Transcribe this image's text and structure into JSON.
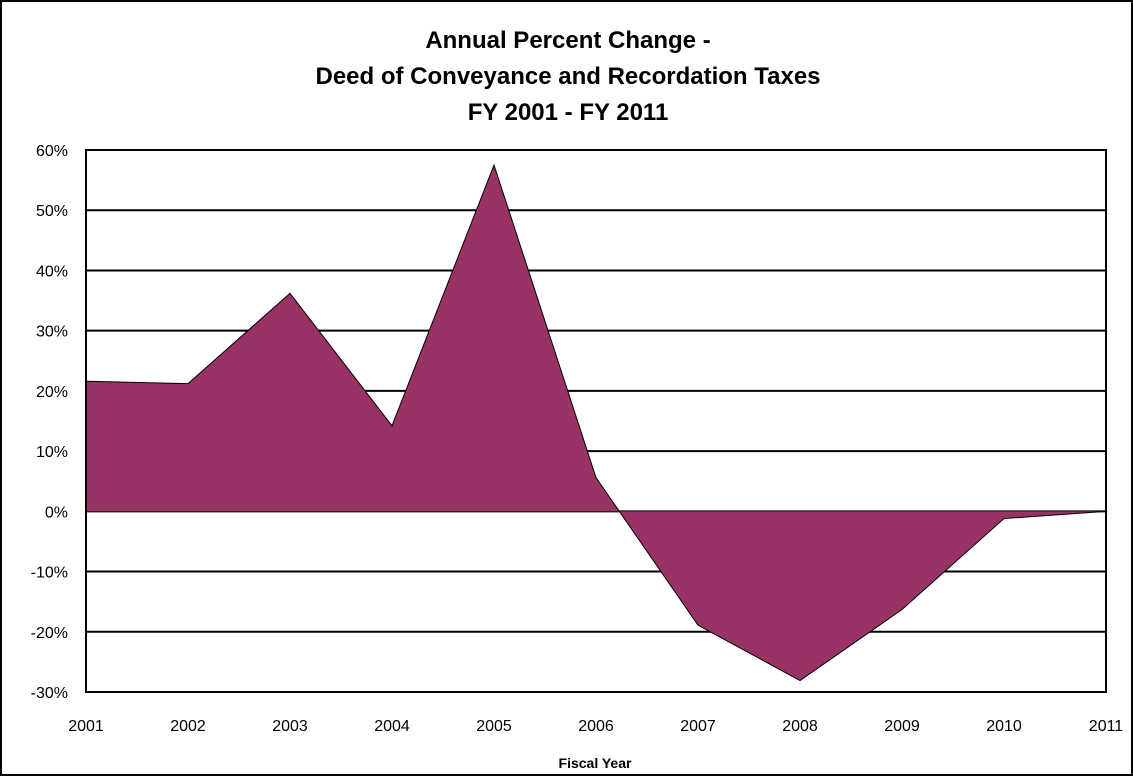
{
  "chart_data": {
    "type": "area",
    "title_lines": [
      "Annual Percent Change -",
      "Deed of Conveyance and Recordation Taxes",
      "FY 2001 - FY 2011"
    ],
    "xlabel": "Fiscal Year",
    "ylabel": "",
    "x": [
      "2001",
      "2002",
      "2003",
      "2004",
      "2005",
      "2006",
      "2007",
      "2008",
      "2009",
      "2010",
      "2011"
    ],
    "series": [
      {
        "values": [
          21.6,
          21.2,
          36.2,
          14.2,
          57.5,
          5.6,
          -18.9,
          -28.1,
          -16.3,
          -1.2,
          0.0
        ]
      }
    ],
    "ylim": [
      -30,
      60
    ],
    "yticks": [
      "-30%",
      "-20%",
      "-10%",
      "0%",
      "10%",
      "20%",
      "30%",
      "40%",
      "50%",
      "60%"
    ],
    "grid": true,
    "fill_color": "#993366",
    "line_color": "#000000"
  }
}
